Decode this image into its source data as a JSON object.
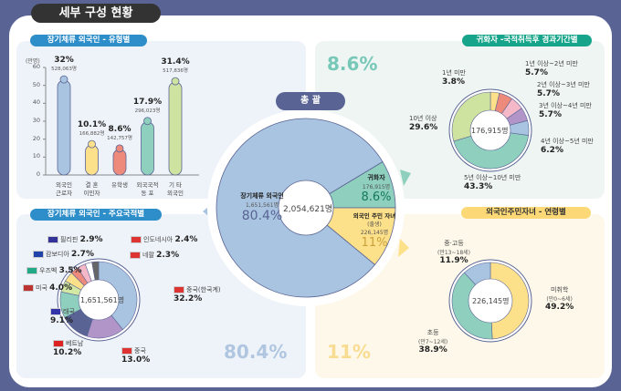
{
  "title": "세부 구성 현황",
  "colors": {
    "navy": "#5a6494",
    "blue": "#a9c4e0",
    "green": "#8ecfbd",
    "yellow": "#fde08a"
  },
  "summary": {
    "label": "총 괄",
    "total": "2,054,621명",
    "slices": [
      {
        "name": "장기체류 외국인",
        "count": "1,651,561명",
        "pct": "80.4%",
        "value": 80.4,
        "color": "#a9c4e0"
      },
      {
        "name": "귀화자",
        "count": "176,915명",
        "pct": "8.6%",
        "value": 8.6,
        "color": "#8ecfbd"
      },
      {
        "name": "외국인 주민 자녀",
        "sub": "(출생)",
        "count": "226,145명",
        "pct": "11%",
        "value": 11,
        "color": "#fde08a"
      }
    ]
  },
  "type_chart": {
    "title": "장기체류 외국인 - 유형별",
    "chart_data": {
      "type": "bar",
      "ylabel": "(만명)",
      "ylim": [
        0,
        60
      ],
      "yticks": [
        "0",
        "10",
        "20",
        "30",
        "40",
        "50",
        "60"
      ],
      "categories": [
        [
          "외국인",
          "근로자"
        ],
        [
          "결 혼",
          "이민자"
        ],
        [
          "유학생",
          ""
        ],
        [
          "외국국적",
          "동 포"
        ],
        [
          "기 타",
          "외국인"
        ]
      ],
      "values": [
        52.8,
        16.7,
        14.3,
        29.6,
        51.8
      ],
      "pcts": [
        "32%",
        "10.1%",
        "8.6%",
        "17.9%",
        "31.4%"
      ],
      "counts": [
        "528,063명",
        "166,882명",
        "142,757명",
        "296,023명",
        "517,836명"
      ],
      "colors": [
        "#a9c4e0",
        "#fde08a",
        "#ee8a7c",
        "#8ecfbd",
        "#cfe3a0"
      ]
    }
  },
  "nationality": {
    "title": "장기체류 외국인 - 주요국적별",
    "total": "1,651,561명",
    "chart_data": {
      "type": "pie",
      "items": [
        {
          "name": "중국(한국계)",
          "pct": "32.2%",
          "value": 32.2,
          "color": "#a9c4e0"
        },
        {
          "name": "중국",
          "pct": "13.0%",
          "value": 13.0,
          "color": "#b195c9"
        },
        {
          "name": "베트남",
          "pct": "10.2%",
          "value": 10.2,
          "color": "#5a6494"
        },
        {
          "name": "태국",
          "pct": "9.1%",
          "value": 9.1,
          "color": "#8ecfbd"
        },
        {
          "name": "미국",
          "pct": "4.0%",
          "value": 4.0,
          "color": "#d4e8a6"
        },
        {
          "name": "우즈벡",
          "pct": "3.5%",
          "value": 3.5,
          "color": "#fde08a"
        },
        {
          "name": "캄보디아",
          "pct": "2.7%",
          "value": 2.7,
          "color": "#ee8a7c"
        },
        {
          "name": "필리핀",
          "pct": "2.9%",
          "value": 2.9,
          "color": "#f4b8c8"
        },
        {
          "name": "인도네시아",
          "pct": "2.4%",
          "value": 2.4,
          "color": "#ffffff"
        },
        {
          "name": "네팔",
          "pct": "2.3%",
          "value": 2.3,
          "color": "#666666"
        }
      ]
    }
  },
  "naturalized": {
    "title": "귀화자 -국적취득후 경과기간별",
    "big": "8.6%",
    "total": "176,915명",
    "chart_data": {
      "type": "pie",
      "items": [
        {
          "name": "1년 미만",
          "pct": "3.8%",
          "value": 3.8,
          "color": "#fde08a"
        },
        {
          "name": "1년 이상~2년 미만",
          "pct": "5.7%",
          "value": 5.7,
          "color": "#ee8a7c"
        },
        {
          "name": "2년 이상~3년 미만",
          "pct": "5.7%",
          "value": 5.7,
          "color": "#f4b8c8"
        },
        {
          "name": "3년 이상~4년 미만",
          "pct": "5.7%",
          "value": 5.7,
          "color": "#b195c9"
        },
        {
          "name": "4년 이상~5년 미만",
          "pct": "6.2%",
          "value": 6.2,
          "color": "#a9c4e0"
        },
        {
          "name": "5년 이상~10년 미만",
          "pct": "43.3%",
          "value": 43.3,
          "color": "#8ecfbd"
        },
        {
          "name": "10년 이상",
          "pct": "29.6%",
          "value": 29.6,
          "color": "#cfe3a0"
        }
      ]
    }
  },
  "children": {
    "title": "외국인주민자녀 - 연령별",
    "big": "11%",
    "total": "226,145명",
    "chart_data": {
      "type": "pie",
      "items": [
        {
          "name": "미취학",
          "sub": "(만0~6세)",
          "pct": "49.2%",
          "value": 49.2,
          "color": "#fde08a"
        },
        {
          "name": "초등",
          "sub": "(만7~12세)",
          "pct": "38.9%",
          "value": 38.9,
          "color": "#8ecfbd"
        },
        {
          "name": "중·고등",
          "sub": "(만13~18세)",
          "pct": "11.9%",
          "value": 11.9,
          "color": "#a9c4e0"
        }
      ]
    }
  },
  "left_big": "80.4%"
}
